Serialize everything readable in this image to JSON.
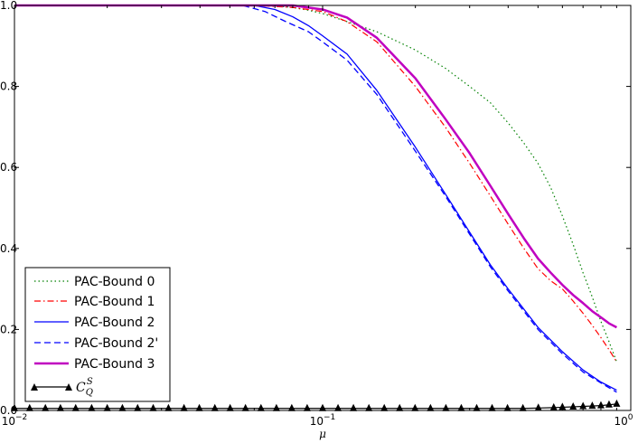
{
  "chart_data": {
    "type": "line",
    "title": "",
    "xlabel": "μ",
    "ylabel": "",
    "xscale": "log",
    "xlim": [
      0.01,
      1
    ],
    "ylim": [
      0,
      1
    ],
    "x_ticks": [
      {
        "value": 0.01,
        "base": "10",
        "exp": "−2"
      },
      {
        "value": 0.1,
        "base": "10",
        "exp": "−1"
      },
      {
        "value": 1,
        "base": "10",
        "exp": "0"
      }
    ],
    "y_ticks": [
      {
        "value": 0.0,
        "label": "0.0"
      },
      {
        "value": 0.2,
        "label": "0.2"
      },
      {
        "value": 0.4,
        "label": "0.4"
      },
      {
        "value": 0.6,
        "label": "0.6"
      },
      {
        "value": 0.8,
        "label": "0.8"
      },
      {
        "value": 1.0,
        "label": "1.0"
      }
    ],
    "grid": false,
    "legend_position": "bottom-left",
    "series": [
      {
        "name": "PAC-Bound 0",
        "color": "#008000",
        "style": "dotted",
        "points": [
          [
            0.01,
            1
          ],
          [
            0.06,
            1
          ],
          [
            0.07,
            0.999
          ],
          [
            0.08,
            0.995
          ],
          [
            0.09,
            0.988
          ],
          [
            0.1,
            0.98
          ],
          [
            0.12,
            0.96
          ],
          [
            0.15,
            0.935
          ],
          [
            0.2,
            0.89
          ],
          [
            0.25,
            0.845
          ],
          [
            0.3,
            0.8
          ],
          [
            0.35,
            0.76
          ],
          [
            0.4,
            0.71
          ],
          [
            0.45,
            0.66
          ],
          [
            0.5,
            0.61
          ],
          [
            0.55,
            0.55
          ],
          [
            0.6,
            0.48
          ],
          [
            0.65,
            0.41
          ],
          [
            0.7,
            0.34
          ],
          [
            0.75,
            0.28
          ],
          [
            0.8,
            0.22
          ],
          [
            0.85,
            0.17
          ],
          [
            0.9,
            0.12
          ]
        ]
      },
      {
        "name": "PAC-Bound 1",
        "color": "#ff0000",
        "style": "dashdot",
        "points": [
          [
            0.01,
            1
          ],
          [
            0.06,
            1
          ],
          [
            0.08,
            0.995
          ],
          [
            0.1,
            0.985
          ],
          [
            0.12,
            0.96
          ],
          [
            0.15,
            0.91
          ],
          [
            0.2,
            0.8
          ],
          [
            0.25,
            0.7
          ],
          [
            0.3,
            0.61
          ],
          [
            0.35,
            0.53
          ],
          [
            0.4,
            0.46
          ],
          [
            0.45,
            0.4
          ],
          [
            0.5,
            0.35
          ],
          [
            0.55,
            0.32
          ],
          [
            0.6,
            0.3
          ],
          [
            0.65,
            0.27
          ],
          [
            0.7,
            0.24
          ],
          [
            0.75,
            0.21
          ],
          [
            0.8,
            0.18
          ],
          [
            0.85,
            0.15
          ],
          [
            0.9,
            0.12
          ]
        ]
      },
      {
        "name": "PAC-Bound 2",
        "color": "#0000ff",
        "style": "solid",
        "points": [
          [
            0.01,
            1
          ],
          [
            0.06,
            1
          ],
          [
            0.07,
            0.99
          ],
          [
            0.08,
            0.972
          ],
          [
            0.09,
            0.95
          ],
          [
            0.1,
            0.925
          ],
          [
            0.12,
            0.88
          ],
          [
            0.15,
            0.79
          ],
          [
            0.2,
            0.65
          ],
          [
            0.25,
            0.535
          ],
          [
            0.3,
            0.44
          ],
          [
            0.35,
            0.36
          ],
          [
            0.4,
            0.3
          ],
          [
            0.45,
            0.25
          ],
          [
            0.5,
            0.205
          ],
          [
            0.6,
            0.145
          ],
          [
            0.7,
            0.1
          ],
          [
            0.8,
            0.07
          ],
          [
            0.9,
            0.05
          ]
        ]
      },
      {
        "name": "PAC-Bound 2'",
        "color": "#0000ff",
        "style": "dashed",
        "points": [
          [
            0.01,
            1
          ],
          [
            0.055,
            1
          ],
          [
            0.065,
            0.985
          ],
          [
            0.075,
            0.962
          ],
          [
            0.09,
            0.935
          ],
          [
            0.1,
            0.91
          ],
          [
            0.12,
            0.865
          ],
          [
            0.15,
            0.78
          ],
          [
            0.2,
            0.64
          ],
          [
            0.25,
            0.53
          ],
          [
            0.3,
            0.435
          ],
          [
            0.35,
            0.355
          ],
          [
            0.4,
            0.295
          ],
          [
            0.45,
            0.245
          ],
          [
            0.5,
            0.2
          ],
          [
            0.6,
            0.14
          ],
          [
            0.7,
            0.095
          ],
          [
            0.8,
            0.068
          ],
          [
            0.9,
            0.045
          ]
        ]
      },
      {
        "name": "PAC-Bound 3",
        "color": "#c000c0",
        "style": "solid-thick",
        "points": [
          [
            0.01,
            1
          ],
          [
            0.08,
            1
          ],
          [
            0.1,
            0.99
          ],
          [
            0.12,
            0.97
          ],
          [
            0.15,
            0.92
          ],
          [
            0.2,
            0.82
          ],
          [
            0.25,
            0.72
          ],
          [
            0.3,
            0.635
          ],
          [
            0.35,
            0.555
          ],
          [
            0.4,
            0.485
          ],
          [
            0.45,
            0.425
          ],
          [
            0.5,
            0.375
          ],
          [
            0.55,
            0.34
          ],
          [
            0.6,
            0.31
          ],
          [
            0.65,
            0.285
          ],
          [
            0.7,
            0.265
          ],
          [
            0.75,
            0.245
          ],
          [
            0.8,
            0.23
          ],
          [
            0.85,
            0.215
          ],
          [
            0.9,
            0.205
          ]
        ]
      },
      {
        "name": "C_Q^S",
        "color": "#000000",
        "style": "solid-triangle",
        "points": [
          [
            0.01,
            0.005
          ],
          [
            0.0112,
            0.005
          ],
          [
            0.0126,
            0.005
          ],
          [
            0.0141,
            0.005
          ],
          [
            0.0158,
            0.005
          ],
          [
            0.0178,
            0.005
          ],
          [
            0.02,
            0.005
          ],
          [
            0.0224,
            0.005
          ],
          [
            0.0251,
            0.005
          ],
          [
            0.0282,
            0.005
          ],
          [
            0.0316,
            0.005
          ],
          [
            0.0355,
            0.005
          ],
          [
            0.0398,
            0.005
          ],
          [
            0.0447,
            0.005
          ],
          [
            0.0501,
            0.005
          ],
          [
            0.0562,
            0.005
          ],
          [
            0.0631,
            0.005
          ],
          [
            0.0708,
            0.005
          ],
          [
            0.0794,
            0.005
          ],
          [
            0.0891,
            0.005
          ],
          [
            0.1,
            0.005
          ],
          [
            0.1122,
            0.005
          ],
          [
            0.1259,
            0.005
          ],
          [
            0.1413,
            0.005
          ],
          [
            0.1585,
            0.005
          ],
          [
            0.1778,
            0.005
          ],
          [
            0.1995,
            0.005
          ],
          [
            0.2239,
            0.005
          ],
          [
            0.2512,
            0.005
          ],
          [
            0.2818,
            0.005
          ],
          [
            0.3162,
            0.005
          ],
          [
            0.3548,
            0.005
          ],
          [
            0.3981,
            0.005
          ],
          [
            0.4467,
            0.005
          ],
          [
            0.5012,
            0.006
          ],
          [
            0.5623,
            0.007
          ],
          [
            0.6,
            0.008
          ],
          [
            0.65,
            0.009
          ],
          [
            0.7,
            0.01
          ],
          [
            0.75,
            0.011
          ],
          [
            0.8,
            0.012
          ],
          [
            0.85,
            0.014
          ],
          [
            0.9,
            0.016
          ]
        ]
      }
    ],
    "legend": {
      "labels": [
        "PAC-Bound 0",
        "PAC-Bound 1",
        "PAC-Bound 2",
        "PAC-Bound 2'",
        "PAC-Bound 3"
      ],
      "cq_label": {
        "base": "C",
        "sub": "Q",
        "sup": "S"
      }
    }
  }
}
